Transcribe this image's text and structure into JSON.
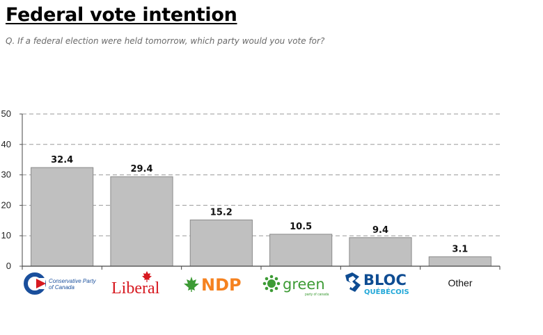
{
  "header": {
    "title": "Federal vote intention",
    "subtitle": "Q. If a federal election were held tomorrow, which party would you vote for?"
  },
  "logos": {
    "conservative_line1": "Conservative Party",
    "conservative_line2": "of Canada",
    "liberal": "Liberal",
    "ndp": "NDP",
    "green": "green",
    "green_sub": "party of canada",
    "bloc_top": "BLOC",
    "bloc_bottom": "QUÉBÉCOIS",
    "other": "Other"
  },
  "colors": {
    "bar": "#c0c0c0",
    "bar_stroke": "#8a8a8a",
    "grid": "#9a9a9a",
    "conservative_blue": "#1a4f9c",
    "liberal_red": "#d71920",
    "ndp_orange": "#f58220",
    "green_green": "#3d9b35",
    "bloc_blue": "#0e4c92",
    "bloc_cyan": "#22a8d8"
  },
  "chart_data": {
    "type": "bar",
    "categories": [
      "Conservative Party of Canada",
      "Liberal",
      "NDP",
      "green",
      "BLOC QUÉBÉCOIS",
      "Other"
    ],
    "values": [
      32.4,
      29.4,
      15.2,
      10.5,
      9.4,
      3.1
    ],
    "data_labels": [
      "32.4",
      "29.4",
      "15.2",
      "10.5",
      "9.4",
      "3.1"
    ],
    "yticks": [
      0,
      10,
      20,
      30,
      40,
      50
    ],
    "ylim": [
      0,
      50
    ],
    "grid": "dashed horizontal",
    "legend": "none"
  }
}
